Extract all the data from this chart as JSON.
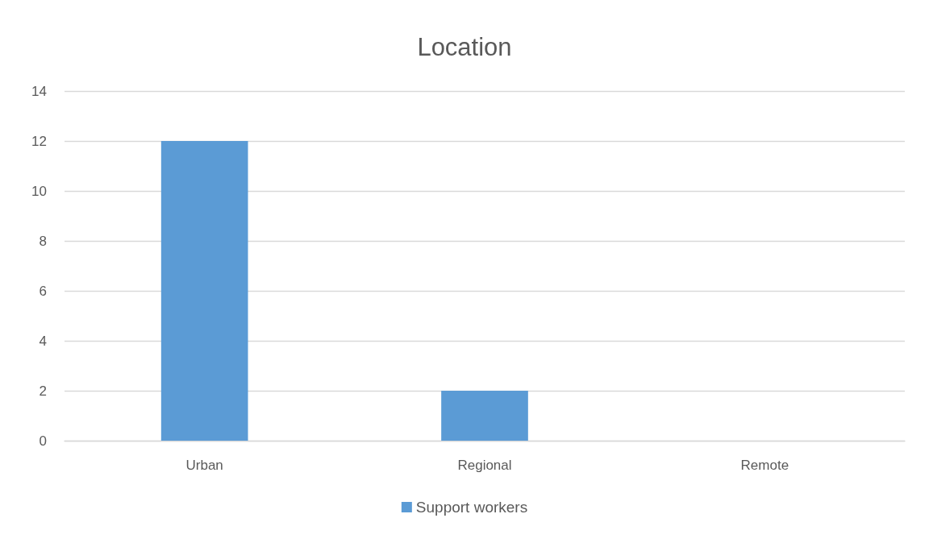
{
  "chart_data": {
    "type": "bar",
    "title": "Location",
    "categories": [
      "Urban",
      "Regional",
      "Remote"
    ],
    "series": [
      {
        "name": "Support workers",
        "color": "#5b9bd5",
        "values": [
          12,
          2,
          0
        ]
      }
    ],
    "ylim": [
      0,
      14
    ],
    "yticks": [
      0,
      2,
      4,
      6,
      8,
      10,
      12,
      14
    ],
    "grid": "y",
    "legend": "bottom"
  }
}
